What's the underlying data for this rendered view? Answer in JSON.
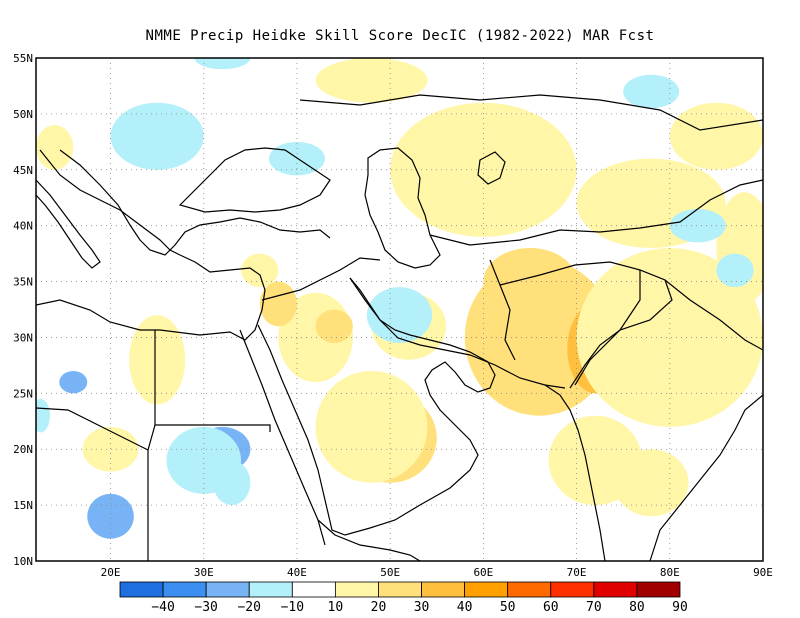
{
  "title": "NMME Precip Heidke Skill Score DecIC (1982-2022) MAR Fcst",
  "map": {
    "lat_range": [
      10,
      55
    ],
    "lon_range": [
      12,
      90
    ],
    "lat_ticks": [
      "10N",
      "15N",
      "20N",
      "25N",
      "30N",
      "35N",
      "40N",
      "45N",
      "50N",
      "55N"
    ],
    "lon_ticks": [
      "20E",
      "30E",
      "40E",
      "50E",
      "60E",
      "70E",
      "80E",
      "90E"
    ],
    "grid": "dotted"
  },
  "colorbar": {
    "labels": [
      "-40",
      "-30",
      "-20",
      "-10",
      "10",
      "20",
      "30",
      "40",
      "50",
      "60",
      "70",
      "80",
      "90"
    ],
    "colors": [
      "#1f6fe0",
      "#3c8ff0",
      "#78b4f5",
      "#b4f0fa",
      "#ffffff",
      "#fff6a8",
      "#ffe07a",
      "#ffc040",
      "#ffa000",
      "#ff6a00",
      "#ff3000",
      "#e00000",
      "#a00000"
    ]
  },
  "skill_regions": [
    {
      "lon": 69,
      "lat": 29,
      "rx": 2.5,
      "ry": 5,
      "value": 40
    },
    {
      "lon": 66,
      "lat": 30,
      "rx": 8,
      "ry": 7,
      "value": 25
    },
    {
      "lon": 72,
      "lat": 29,
      "rx": 3,
      "ry": 4,
      "value": 30
    },
    {
      "lon": 78,
      "lat": 33,
      "rx": 2,
      "ry": 1.5,
      "value": 35
    },
    {
      "lon": 65,
      "lat": 35,
      "rx": 5,
      "ry": 3,
      "value": 20
    },
    {
      "lon": 50,
      "lat": 21,
      "rx": 5,
      "ry": 4,
      "value": 25
    },
    {
      "lon": 48,
      "lat": 22,
      "rx": 6,
      "ry": 5,
      "value": 15
    },
    {
      "lon": 42,
      "lat": 30,
      "rx": 4,
      "ry": 4,
      "value": 15
    },
    {
      "lon": 38,
      "lat": 33,
      "rx": 2,
      "ry": 2,
      "value": 20
    },
    {
      "lon": 36,
      "lat": 36,
      "rx": 2,
      "ry": 1.5,
      "value": 15
    },
    {
      "lon": 80,
      "lat": 30,
      "rx": 10,
      "ry": 8,
      "value": 15
    },
    {
      "lon": 60,
      "lat": 45,
      "rx": 10,
      "ry": 6,
      "value": 15
    },
    {
      "lon": 48,
      "lat": 53,
      "rx": 6,
      "ry": 2,
      "value": 15
    },
    {
      "lon": 78,
      "lat": 42,
      "rx": 8,
      "ry": 4,
      "value": 15
    },
    {
      "lon": 88,
      "lat": 38,
      "rx": 3,
      "ry": 5,
      "value": 15
    },
    {
      "lon": 25,
      "lat": 28,
      "rx": 3,
      "ry": 4,
      "value": 15
    },
    {
      "lon": 14,
      "lat": 47,
      "rx": 2,
      "ry": 2,
      "value": 15
    },
    {
      "lon": 52,
      "lat": 31,
      "rx": 4,
      "ry": 3,
      "value": 15
    },
    {
      "lon": 44,
      "lat": 31,
      "rx": 2,
      "ry": 1.5,
      "value": 20
    },
    {
      "lon": 20,
      "lat": 20,
      "rx": 3,
      "ry": 2,
      "value": 15
    },
    {
      "lon": 72,
      "lat": 19,
      "rx": 5,
      "ry": 4,
      "value": 15
    },
    {
      "lon": 78,
      "lat": 17,
      "rx": 4,
      "ry": 3,
      "value": 15
    },
    {
      "lon": 82,
      "lat": 26,
      "rx": 4,
      "ry": 3,
      "value": 15
    },
    {
      "lon": 85,
      "lat": 48,
      "rx": 5,
      "ry": 3,
      "value": 15
    },
    {
      "lon": 32,
      "lat": 20,
      "rx": 3,
      "ry": 2,
      "value": -20
    },
    {
      "lon": 30,
      "lat": 19,
      "rx": 4,
      "ry": 3,
      "value": -15
    },
    {
      "lon": 33,
      "lat": 17,
      "rx": 2,
      "ry": 2,
      "value": -15
    },
    {
      "lon": 20,
      "lat": 14,
      "rx": 2.5,
      "ry": 2,
      "value": -20
    },
    {
      "lon": 16,
      "lat": 26,
      "rx": 1.5,
      "ry": 1,
      "value": -25
    },
    {
      "lon": 51,
      "lat": 32,
      "rx": 2,
      "ry": 1.5,
      "value": -25
    },
    {
      "lon": 51,
      "lat": 32,
      "rx": 3.5,
      "ry": 2.5,
      "value": -15
    },
    {
      "lon": 25,
      "lat": 48,
      "rx": 5,
      "ry": 3,
      "value": -15
    },
    {
      "lon": 40,
      "lat": 46,
      "rx": 3,
      "ry": 1.5,
      "value": -15
    },
    {
      "lon": 32,
      "lat": 55,
      "rx": 3,
      "ry": 1,
      "value": -15
    },
    {
      "lon": 83,
      "lat": 40,
      "rx": 3,
      "ry": 1.5,
      "value": -15
    },
    {
      "lon": 87,
      "lat": 36,
      "rx": 2,
      "ry": 1.5,
      "value": -15
    },
    {
      "lon": 12.5,
      "lat": 23,
      "rx": 1,
      "ry": 1.5,
      "value": -15
    },
    {
      "lon": 78,
      "lat": 52,
      "rx": 3,
      "ry": 1.5,
      "value": -15
    }
  ]
}
